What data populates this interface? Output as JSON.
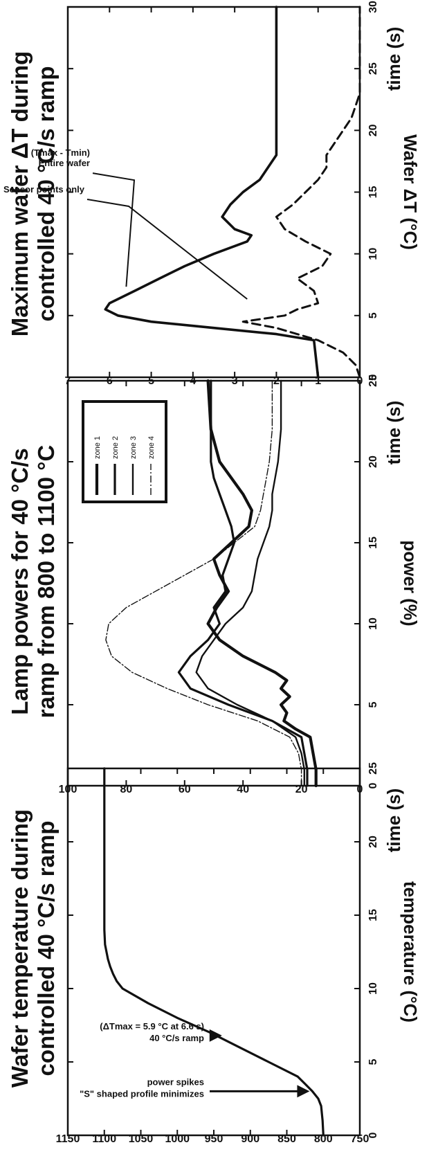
{
  "chart_data": [
    {
      "type": "line",
      "title_lines": [
        "Wafer temperature during",
        "controlled 40 °C/s ramp"
      ],
      "xlabel": "time (s)",
      "ylabel": "temperature (°C)",
      "xlim": [
        0,
        25
      ],
      "ylim": [
        750,
        1150
      ],
      "xticks": [
        "0",
        "5",
        "10",
        "15",
        "20",
        "25"
      ],
      "yticks": [
        "750",
        "800",
        "850",
        "900",
        "950",
        "1000",
        "1050",
        "1100",
        "1150"
      ],
      "annotations": [
        {
          "lines": [
            "40 °C/s ramp",
            "(ΔTmax = 5.9 °C at 6.6 s)"
          ],
          "x": 6.8,
          "y": 935
        },
        {
          "lines": [
            "\"S\" shaped profile minimizes",
            "power spikes"
          ],
          "x": 3.0,
          "y": 815
        }
      ],
      "series": [
        {
          "name": "",
          "x": [
            0,
            1,
            2,
            2.5,
            3,
            3.5,
            4,
            5,
            6,
            7,
            8,
            9,
            10,
            10.5,
            11,
            11.5,
            12,
            12.5,
            13,
            14,
            15,
            25
          ],
          "y": [
            800,
            801,
            803,
            807,
            815,
            825,
            835,
            875,
            915,
            955,
            1000,
            1040,
            1075,
            1083,
            1088,
            1092,
            1095,
            1097,
            1099,
            1100,
            1100,
            1100
          ]
        }
      ]
    },
    {
      "type": "line",
      "title_lines": [
        "Lamp powers for 40 °C/s",
        "ramp from 800 to 1100 °C"
      ],
      "xlabel": "time (s)",
      "ylabel": "power (%)",
      "xlim": [
        0,
        25
      ],
      "ylim": [
        0,
        100
      ],
      "xticks": [
        "0",
        "5",
        "10",
        "15",
        "20",
        "25"
      ],
      "yticks": [
        "0",
        "20",
        "40",
        "60",
        "80",
        "100"
      ],
      "legend": [
        "zone 1",
        "zone 2",
        "zone 3",
        "zone 4"
      ],
      "legend_position": "top-right",
      "series": [
        {
          "name": "zone 1",
          "x": [
            0,
            1,
            2,
            3,
            3.5,
            4,
            4.5,
            5,
            5.5,
            6,
            6.5,
            7,
            8,
            9,
            10,
            11,
            12,
            13,
            14,
            15,
            16,
            17,
            18,
            19,
            20,
            22,
            25
          ],
          "y": [
            15,
            15,
            16,
            17,
            22,
            26,
            25,
            27,
            24,
            27,
            25,
            29,
            40,
            48,
            52,
            49,
            45,
            48,
            50,
            44,
            38,
            37,
            40,
            44,
            48,
            51,
            52
          ]
        },
        {
          "name": "zone 2",
          "x": [
            0,
            1,
            2,
            3,
            3.5,
            4,
            5,
            6,
            7,
            8,
            9,
            10,
            11,
            12,
            13,
            14,
            15,
            16,
            17,
            18,
            19,
            20,
            22,
            25
          ],
          "y": [
            18,
            18,
            19,
            20,
            25,
            30,
            45,
            58,
            62,
            58,
            52,
            48,
            50,
            46,
            47,
            45,
            43,
            44,
            46,
            48,
            50,
            51,
            51,
            51
          ]
        },
        {
          "name": "zone 3",
          "x": [
            0,
            1,
            2,
            3,
            4,
            5,
            6,
            7,
            8,
            9,
            10,
            11,
            12,
            13,
            14,
            15,
            16,
            17,
            18,
            19,
            20,
            22,
            25
          ],
          "y": [
            19,
            19,
            20,
            22,
            30,
            42,
            52,
            56,
            54,
            50,
            46,
            40,
            37,
            36,
            35,
            33,
            31,
            30,
            30,
            29,
            28,
            27,
            27
          ]
        },
        {
          "name": "zone 4",
          "x": [
            0,
            1,
            2,
            3,
            4,
            5,
            6,
            7,
            8,
            9,
            10,
            11,
            12,
            13,
            14,
            15,
            16,
            17,
            18,
            19,
            20,
            22,
            25
          ],
          "y": [
            20,
            20,
            21,
            24,
            35,
            52,
            66,
            78,
            85,
            87,
            86,
            80,
            70,
            60,
            50,
            43,
            36,
            34,
            33,
            32,
            31,
            30,
            30
          ]
        }
      ]
    },
    {
      "type": "line",
      "title_lines": [
        "Maximum wafer ΔT during",
        "controlled 40 °C/s ramp"
      ],
      "xlabel": "time (s)",
      "ylabel": "Wafer ΔT (°C)",
      "xlim": [
        0,
        30
      ],
      "ylim": [
        0,
        7
      ],
      "xticks": [
        "0",
        "5",
        "10",
        "15",
        "20",
        "25",
        "30"
      ],
      "yticks": [
        "0",
        "1",
        "2",
        "3",
        "4",
        "5",
        "6",
        "7"
      ],
      "annotations": [
        {
          "lines": [
            "Entire wafer",
            "(Tmax - Tmin)"
          ],
          "x": 7,
          "y": 5.6
        },
        {
          "lines": [
            "Sensor points only"
          ],
          "x": 6,
          "y": 2.7
        }
      ],
      "series": [
        {
          "name": "Entire wafer (Tmax - Tmin)",
          "x": [
            0,
            3,
            3.5,
            4,
            4.5,
            5,
            5.5,
            6,
            7,
            8,
            9,
            10,
            11,
            11.5,
            12,
            13,
            14,
            15,
            16,
            17,
            18,
            19,
            20,
            25,
            30
          ],
          "y": [
            1.0,
            1.1,
            2.0,
            3.5,
            5.0,
            5.8,
            6.1,
            6.0,
            5.4,
            4.8,
            4.2,
            3.5,
            2.7,
            2.6,
            3.0,
            3.3,
            3.1,
            2.8,
            2.4,
            2.2,
            2.0,
            2.0,
            2.0,
            2.0,
            2.0
          ]
        },
        {
          "name": "Sensor points only",
          "x": [
            0,
            1,
            2,
            3,
            4,
            4.5,
            5,
            5.5,
            6,
            7,
            8,
            9,
            10,
            11,
            12,
            13,
            14,
            15,
            16,
            17,
            18,
            19,
            20,
            21,
            22,
            23,
            25,
            30
          ],
          "y": [
            0.0,
            0.1,
            0.4,
            1.0,
            2.0,
            2.8,
            1.8,
            1.5,
            1.0,
            1.1,
            1.5,
            0.9,
            0.7,
            1.3,
            1.8,
            2.0,
            1.6,
            1.3,
            1.0,
            0.8,
            0.8,
            0.6,
            0.4,
            0.2,
            0.1,
            0.0,
            0.0,
            0.0
          ]
        }
      ]
    }
  ]
}
